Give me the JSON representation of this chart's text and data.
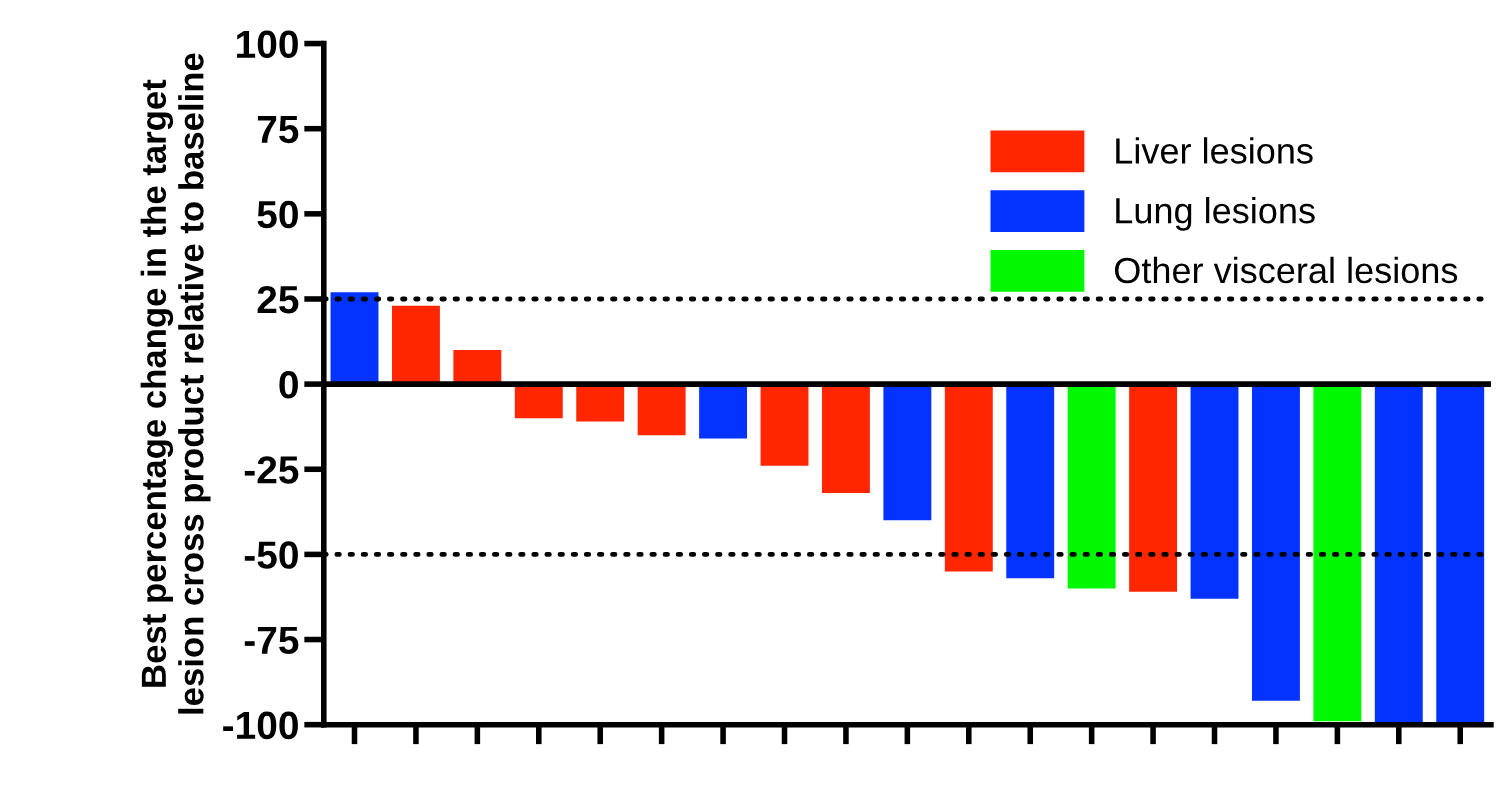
{
  "chart_data": {
    "type": "bar",
    "ylabel": "Best percentage change in the target\nlesion cross product relative to baseline",
    "categories": [
      null,
      null,
      null,
      null,
      null,
      null,
      null,
      null,
      null,
      null,
      null,
      null,
      null,
      null,
      null,
      null,
      null,
      null,
      null
    ],
    "series": [
      {
        "name": "Liver lesions",
        "color": "#ff2600",
        "values": [
          null,
          23,
          10,
          -10,
          -11,
          -15,
          null,
          -24,
          -32,
          null,
          -55,
          null,
          null,
          -61,
          null,
          null,
          null,
          null,
          null
        ]
      },
      {
        "name": "Lung lesions",
        "color": "#0433ff",
        "values": [
          27,
          null,
          null,
          null,
          null,
          null,
          -16,
          null,
          null,
          -40,
          null,
          -57,
          null,
          null,
          -63,
          -93,
          null,
          -100,
          -100
        ]
      },
      {
        "name": "Other visceral lesions",
        "color": "#00f900",
        "values": [
          null,
          null,
          null,
          null,
          null,
          null,
          null,
          null,
          null,
          null,
          null,
          null,
          -60,
          null,
          null,
          null,
          -99,
          null,
          null
        ]
      }
    ],
    "ylim": [
      -100,
      100
    ],
    "yticks": [
      -100,
      -75,
      -50,
      -25,
      0,
      25,
      50,
      75,
      100
    ],
    "ref_lines": [
      {
        "axis": "y",
        "value": 25,
        "line_style": "dotted",
        "color": "#000000"
      },
      {
        "axis": "y",
        "value": -50,
        "line_style": "dotted",
        "color": "#000000"
      },
      {
        "axis": "y",
        "value": 0,
        "line_style": "solid",
        "color": "#000000"
      }
    ],
    "tick_labels": "y",
    "grid": false,
    "legend": "top right"
  }
}
